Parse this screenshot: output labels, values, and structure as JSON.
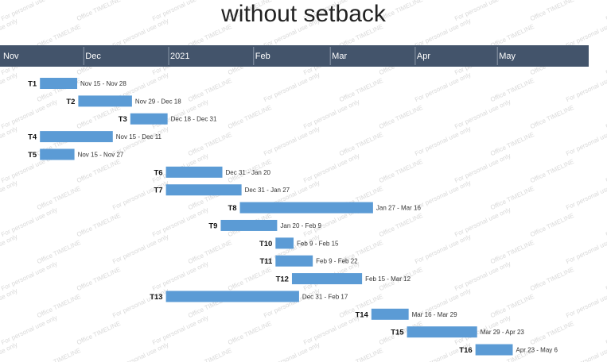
{
  "chart_data": {
    "type": "gantt",
    "title": "without setback",
    "axis_start": "2020-11-01",
    "axis_end": "2021-05-31",
    "timescale": [
      {
        "label": "Nov",
        "date": "2020-11-01"
      },
      {
        "label": "Dec",
        "date": "2020-12-01"
      },
      {
        "label": "2021",
        "date": "2021-01-01"
      },
      {
        "label": "Feb",
        "date": "2021-02-01"
      },
      {
        "label": "Mar",
        "date": "2021-03-01"
      },
      {
        "label": "Apr",
        "date": "2021-04-01"
      },
      {
        "label": "May",
        "date": "2021-05-01"
      }
    ],
    "tasks": [
      {
        "name": "T1",
        "start": "2020-11-15",
        "end": "2020-11-28",
        "label": "Nov 15 - Nov 28"
      },
      {
        "name": "T2",
        "start": "2020-11-29",
        "end": "2020-12-18",
        "label": "Nov 29 - Dec 18"
      },
      {
        "name": "T3",
        "start": "2020-12-18",
        "end": "2020-12-31",
        "label": "Dec 18 - Dec 31"
      },
      {
        "name": "T4",
        "start": "2020-11-15",
        "end": "2020-12-11",
        "label": "Nov 15 - Dec 11"
      },
      {
        "name": "T5",
        "start": "2020-11-15",
        "end": "2020-11-27",
        "label": "Nov 15 - Nov 27"
      },
      {
        "name": "T6",
        "start": "2020-12-31",
        "end": "2021-01-20",
        "label": "Dec 31 - Jan 20"
      },
      {
        "name": "T7",
        "start": "2020-12-31",
        "end": "2021-01-27",
        "label": "Dec 31 - Jan 27"
      },
      {
        "name": "T8",
        "start": "2021-01-27",
        "end": "2021-03-16",
        "label": "Jan 27 - Mar 16"
      },
      {
        "name": "T9",
        "start": "2021-01-20",
        "end": "2021-02-09",
        "label": "Jan 20 - Feb 9"
      },
      {
        "name": "T10",
        "start": "2021-02-09",
        "end": "2021-02-15",
        "label": "Feb 9 - Feb 15"
      },
      {
        "name": "T11",
        "start": "2021-02-09",
        "end": "2021-02-22",
        "label": "Feb 9 - Feb 22"
      },
      {
        "name": "T12",
        "start": "2021-02-15",
        "end": "2021-03-12",
        "label": "Feb 15 - Mar 12"
      },
      {
        "name": "T13",
        "start": "2020-12-31",
        "end": "2021-02-17",
        "label": "Dec 31 - Feb 17"
      },
      {
        "name": "T14",
        "start": "2021-03-16",
        "end": "2021-03-29",
        "label": "Mar 16 - Mar 29"
      },
      {
        "name": "T15",
        "start": "2021-03-29",
        "end": "2021-04-23",
        "label": "Mar 29 - Apr 23"
      },
      {
        "name": "T16",
        "start": "2021-04-23",
        "end": "2021-05-06",
        "label": "Apr 23 - May 6"
      }
    ],
    "watermarks": [
      "For personal use only",
      "Office TIMELINE"
    ]
  },
  "colors": {
    "header_bg": "#43546b",
    "header_text": "#ffffff",
    "bar": "#5b9bd5",
    "title_text": "#222222",
    "watermark": "#d9d9d9"
  }
}
